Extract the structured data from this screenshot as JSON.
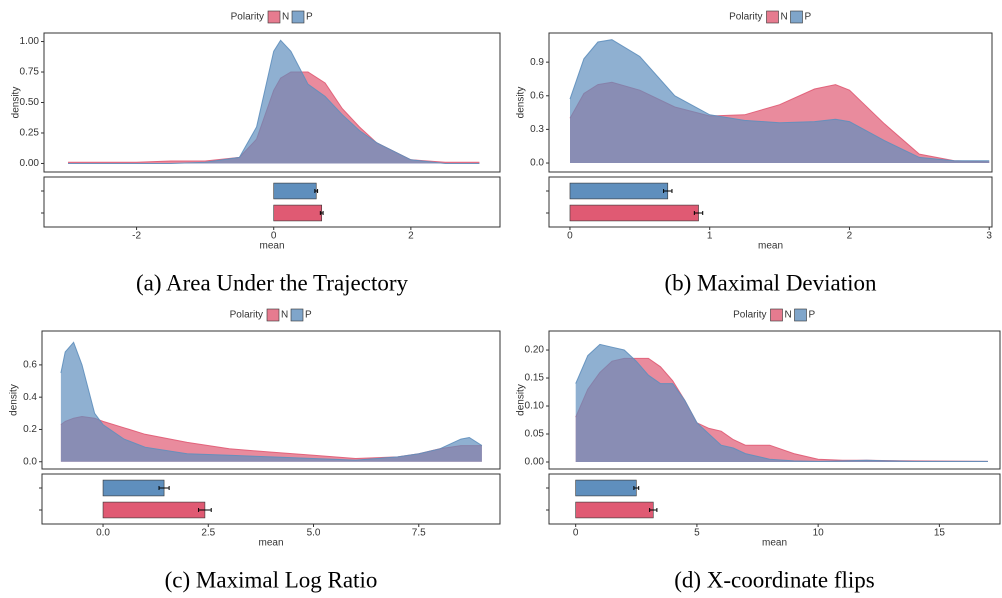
{
  "chart_data": [
    {
      "type": "area",
      "legend_title": "Polarity",
      "y_label": "density",
      "x": [
        -3,
        -2,
        -1.5,
        -1,
        -0.5,
        -0.25,
        0,
        0.1,
        0.25,
        0.5,
        0.75,
        1,
        1.25,
        1.5,
        2,
        2.5,
        3
      ],
      "series": [
        {
          "name": "N",
          "color": "#e05a73",
          "values": [
            0.01,
            0.01,
            0.02,
            0.02,
            0.05,
            0.2,
            0.6,
            0.7,
            0.75,
            0.75,
            0.66,
            0.45,
            0.3,
            0.17,
            0.03,
            0.01,
            0.01
          ]
        },
        {
          "name": "P",
          "color": "#5f8fbd",
          "values": [
            0,
            0,
            0,
            0.01,
            0.05,
            0.3,
            0.92,
            1.01,
            0.92,
            0.65,
            0.55,
            0.4,
            0.27,
            0.17,
            0.03,
            0,
            0
          ]
        }
      ],
      "xlim": [
        -3.35,
        3.3
      ],
      "ylim": [
        -0.07,
        1.07
      ],
      "yticks": [
        {
          "value": 0,
          "label": "0.00"
        },
        0.25,
        {
          "value": 0.5,
          "label": "0.50"
        },
        0.75,
        {
          "value": 1,
          "label": "1.00"
        }
      ]
    },
    {
      "type": "bar",
      "orientation": "horizontal",
      "x_label": "mean",
      "caption": "(a) Area Under the Trajectory",
      "categories": [
        null,
        null
      ],
      "values": [
        0.62,
        0.7
      ],
      "errors": [
        0.02,
        0.02
      ],
      "colors": [
        "#5f8fbd",
        "#e05a73"
      ],
      "xlim": [
        -3.35,
        3.3
      ],
      "xticks": [
        -2,
        0,
        2
      ]
    },
    {
      "type": "area",
      "legend_title": "Polarity",
      "y_label": "density",
      "x": [
        0,
        0.1,
        0.2,
        0.3,
        0.5,
        0.75,
        1,
        1.25,
        1.5,
        1.75,
        1.9,
        2,
        2.25,
        2.5,
        2.75,
        3
      ],
      "series": [
        {
          "name": "N",
          "color": "#e05a73",
          "values": [
            0.4,
            0.62,
            0.7,
            0.72,
            0.65,
            0.5,
            0.42,
            0.43,
            0.52,
            0.66,
            0.7,
            0.65,
            0.35,
            0.08,
            0.02,
            0.01
          ]
        },
        {
          "name": "P",
          "color": "#5f8fbd",
          "values": [
            0.57,
            0.93,
            1.08,
            1.1,
            0.95,
            0.6,
            0.43,
            0.38,
            0.36,
            0.37,
            0.39,
            0.37,
            0.2,
            0.05,
            0.02,
            0.02
          ]
        }
      ],
      "xlim": [
        -0.15,
        3.02
      ],
      "ylim": [
        -0.08,
        1.16
      ],
      "yticks": [
        {
          "value": 0,
          "label": "0.0"
        },
        0.3,
        0.6,
        0.9
      ]
    },
    {
      "type": "bar",
      "orientation": "horizontal",
      "x_label": "mean",
      "caption": "(b) Maximal Deviation",
      "categories": [
        null,
        null
      ],
      "values": [
        0.7,
        0.92
      ],
      "errors": [
        0.03,
        0.03
      ],
      "colors": [
        "#5f8fbd",
        "#e05a73"
      ],
      "xlim": [
        -0.15,
        3.02
      ],
      "xticks": [
        0,
        1,
        2,
        3
      ]
    },
    {
      "type": "area",
      "legend_title": "Polarity",
      "y_label": "density",
      "x": [
        -1,
        -0.9,
        -0.7,
        -0.5,
        -0.2,
        0,
        0.5,
        1,
        2,
        3,
        4,
        5,
        6,
        7,
        7.5,
        8,
        8.5,
        8.7,
        9
      ],
      "series": [
        {
          "name": "N",
          "color": "#e05a73",
          "values": [
            0.23,
            0.25,
            0.27,
            0.28,
            0.27,
            0.25,
            0.21,
            0.17,
            0.12,
            0.08,
            0.06,
            0.04,
            0.02,
            0.03,
            0.05,
            0.08,
            0.1,
            0.1,
            0.1
          ]
        },
        {
          "name": "P",
          "color": "#5f8fbd",
          "values": [
            0.55,
            0.68,
            0.74,
            0.6,
            0.3,
            0.23,
            0.14,
            0.09,
            0.05,
            0.04,
            0.03,
            0.02,
            0.01,
            0.03,
            0.05,
            0.08,
            0.14,
            0.15,
            0.1
          ]
        }
      ],
      "xlim": [
        -1.45,
        9.43
      ],
      "ylim": [
        -0.045,
        0.81
      ],
      "yticks": [
        {
          "value": 0,
          "label": "0.0"
        },
        0.2,
        0.4,
        0.6
      ]
    },
    {
      "type": "bar",
      "orientation": "horizontal",
      "x_label": "mean",
      "caption": "(c) Maximal Log Ratio",
      "categories": [
        null,
        null
      ],
      "values": [
        1.45,
        2.42
      ],
      "errors": [
        0.12,
        0.15
      ],
      "colors": [
        "#5f8fbd",
        "#e05a73"
      ],
      "xlim": [
        -1.45,
        9.43
      ],
      "xticks": [
        {
          "value": 0,
          "label": "0.0"
        },
        2.5,
        {
          "value": 5,
          "label": "5.0"
        },
        7.5
      ]
    },
    {
      "type": "area",
      "legend_title": "Polarity",
      "y_label": "density",
      "x": [
        0,
        0.5,
        1,
        1.5,
        2,
        2.5,
        3,
        3.5,
        4,
        4.5,
        5,
        5.5,
        6,
        6.5,
        7,
        8,
        9,
        10,
        11,
        12,
        14,
        17
      ],
      "series": [
        {
          "name": "N",
          "color": "#e05a73",
          "values": [
            0.08,
            0.13,
            0.16,
            0.18,
            0.185,
            0.185,
            0.185,
            0.17,
            0.145,
            0.11,
            0.07,
            0.06,
            0.055,
            0.04,
            0.03,
            0.03,
            0.015,
            0.005,
            0.003,
            0.003,
            0.002,
            0.001
          ]
        },
        {
          "name": "P",
          "color": "#5f8fbd",
          "values": [
            0.14,
            0.19,
            0.21,
            0.205,
            0.2,
            0.18,
            0.155,
            0.14,
            0.14,
            0.11,
            0.07,
            0.05,
            0.03,
            0.025,
            0.015,
            0.005,
            0.002,
            0.001,
            0.002,
            0.003,
            0.001,
            0.001
          ]
        }
      ],
      "xlim": [
        -1.1,
        17.5
      ],
      "ylim": [
        -0.0125,
        0.234
      ],
      "yticks": [
        {
          "value": 0,
          "label": "0.00"
        },
        0.05,
        {
          "value": 0.1,
          "label": "0.10"
        },
        0.15,
        {
          "value": 0.2,
          "label": "0.20"
        }
      ]
    },
    {
      "type": "bar",
      "orientation": "horizontal",
      "x_label": "mean",
      "caption": "(d) X-coordinate flips",
      "categories": [
        null,
        null
      ],
      "values": [
        2.5,
        3.2
      ],
      "errors": [
        0.1,
        0.15
      ],
      "colors": [
        "#5f8fbd",
        "#e05a73"
      ],
      "xlim": [
        -1.1,
        17.5
      ],
      "xticks": [
        0,
        5,
        10,
        15
      ]
    }
  ]
}
